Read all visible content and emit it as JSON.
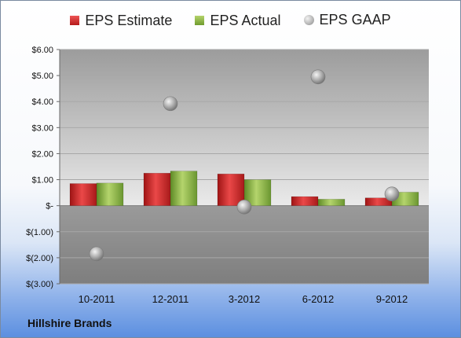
{
  "legend": {
    "estimate": "EPS Estimate",
    "actual": "EPS Actual",
    "gaap": "EPS GAAP"
  },
  "company": "Hillshire Brands",
  "colors": {
    "estimate": "#c62020",
    "actual": "#86b043",
    "gaap": "#a0a0a0"
  },
  "chart_data": {
    "type": "bar",
    "categories": [
      "10-2011",
      "12-2011",
      "3-2012",
      "6-2012",
      "9-2012"
    ],
    "series": [
      {
        "name": "EPS Estimate",
        "kind": "bar",
        "values": [
          0.85,
          1.25,
          1.22,
          0.35,
          0.3
        ]
      },
      {
        "name": "EPS Actual",
        "kind": "bar",
        "values": [
          0.87,
          1.33,
          1.0,
          0.25,
          0.52
        ]
      },
      {
        "name": "EPS GAAP",
        "kind": "marker",
        "values": [
          -1.85,
          3.92,
          -0.05,
          4.95,
          0.45
        ]
      }
    ],
    "ylim": [
      -3,
      6
    ],
    "yticks": [
      6,
      5,
      4,
      3,
      2,
      1,
      0,
      -1,
      -2,
      -3
    ],
    "ytick_labels": [
      "$6.00",
      "$5.00",
      "$4.00",
      "$3.00",
      "$2.00",
      "$1.00",
      "$-",
      "$(1.00)",
      "$(2.00)",
      "$(3.00)"
    ],
    "legend_position": "top",
    "grid": true
  }
}
